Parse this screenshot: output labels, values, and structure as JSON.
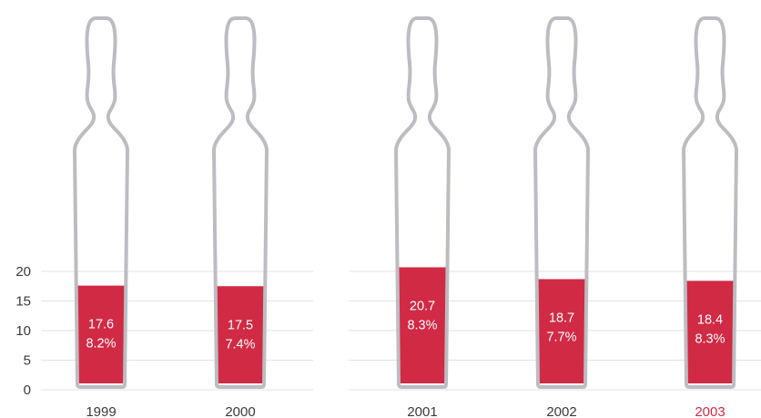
{
  "chart_data": {
    "type": "bar",
    "categories": [
      "1999",
      "2000",
      "2001",
      "2002",
      "2003"
    ],
    "values": [
      17.6,
      17.5,
      20.7,
      18.7,
      18.4
    ],
    "percent_labels": [
      "8.2%",
      "7.4%",
      "8.3%",
      "7.7%",
      "8.3%"
    ],
    "value_labels": [
      "17.6",
      "17.5",
      "20.7",
      "18.7",
      "18.4"
    ],
    "yticks": [
      "0",
      "5",
      "10",
      "15",
      "20"
    ],
    "ylim": [
      0,
      20
    ],
    "grid": true,
    "colors": {
      "fill": "#d12a45",
      "glass": "#bcbcc2",
      "highlight_label": "#d12a45",
      "tick_text": "#3a3a3a"
    },
    "highlight_category": "2003"
  }
}
